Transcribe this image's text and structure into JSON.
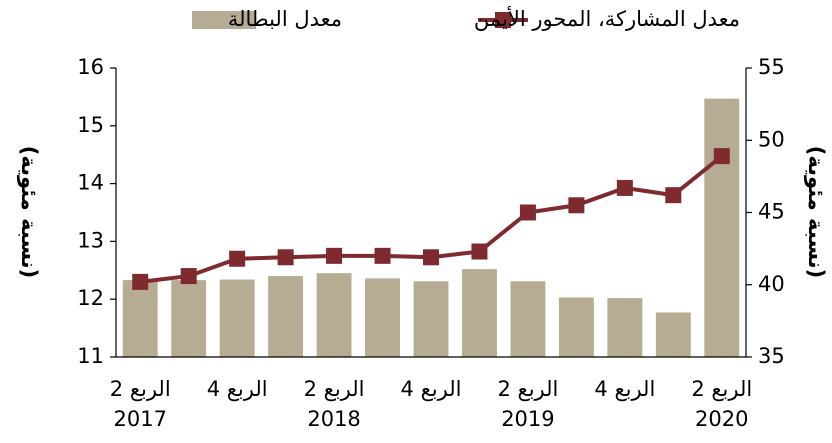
{
  "chart_data": {
    "type": "bar_line",
    "categories": [
      [
        "الربع 2",
        "2017"
      ],
      null,
      [
        "الربع 4"
      ],
      null,
      [
        "الربع 2",
        "2018"
      ],
      null,
      [
        "الربع 4"
      ],
      null,
      [
        "الربع 2",
        "2019"
      ],
      null,
      [
        "الربع 4"
      ],
      null,
      [
        "الربع 2",
        "2020"
      ]
    ],
    "series": [
      {
        "name": "معدل البطالة",
        "type": "bar",
        "color": "#b6ab93",
        "values": [
          12.33,
          12.33,
          12.34,
          12.4,
          12.45,
          12.36,
          12.31,
          12.52,
          12.31,
          12.03,
          12.02,
          11.77,
          15.47
        ]
      },
      {
        "name": "معدل المشاركة، المحور الأيمن",
        "type": "line",
        "axis": "y2",
        "color": "#7f2a2e",
        "values": [
          40.2,
          40.6,
          41.8,
          41.9,
          42.0,
          42.0,
          41.9,
          42.3,
          45.0,
          45.5,
          46.7,
          46.2,
          48.9
        ]
      }
    ],
    "ylabel": "(نسبة مئوية)",
    "y2label": "(نسبة مئوية)",
    "ylim": [
      11,
      16
    ],
    "yticks": [
      11,
      12,
      13,
      14,
      15,
      16
    ],
    "y2lim": [
      35,
      55
    ],
    "y2ticks": [
      35,
      40,
      45,
      50,
      55
    ],
    "legend": "top"
  }
}
